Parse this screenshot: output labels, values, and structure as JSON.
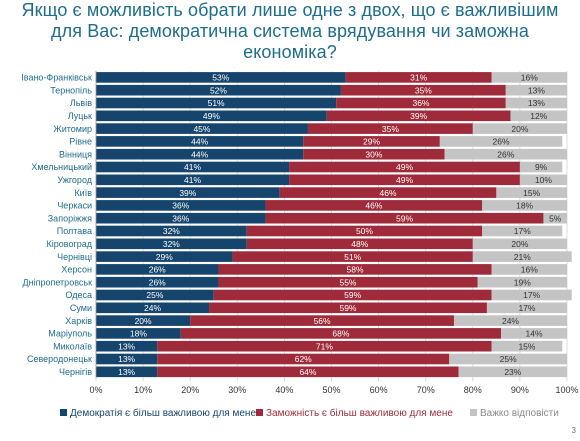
{
  "title_lines": [
    "Якщо є можливість обрати лише одне з двох, що є важливішим",
    "для Вас: демократична система врядування чи заможна",
    "економіка?"
  ],
  "page_number": "3",
  "colors": {
    "democracy": "#15456c",
    "prosperity": "#9e2a3a",
    "hard": "#c4c4c4",
    "title": "#1f6d8c"
  },
  "chart_data": {
    "type": "bar",
    "orientation": "horizontal",
    "stacked": true,
    "categories": [
      "Івано-Франківськ",
      "Тернопіль",
      "Львів",
      "Луцьк",
      "Житомир",
      "Рівне",
      "Вінниця",
      "Хмельницький",
      "Ужгород",
      "Київ",
      "Черкаси",
      "Запоріжжя",
      "Полтава",
      "Кіровоград",
      "Чернівці",
      "Херсон",
      "Дніпропетровськ",
      "Одеса",
      "Суми",
      "Харків",
      "Маріуполь",
      "Миколаїв",
      "Северодонецьк",
      "Чернігів"
    ],
    "series": [
      {
        "name": "Демократія є більш важливою для мене",
        "color": "#15456c",
        "values": [
          53,
          52,
          51,
          49,
          45,
          44,
          44,
          41,
          41,
          39,
          36,
          36,
          32,
          32,
          29,
          26,
          26,
          25,
          24,
          20,
          18,
          13,
          13,
          13
        ]
      },
      {
        "name": "Заможність є більш важливою для мене",
        "color": "#9e2a3a",
        "values": [
          31,
          35,
          36,
          39,
          35,
          29,
          30,
          49,
          49,
          46,
          46,
          59,
          50,
          48,
          51,
          58,
          55,
          59,
          59,
          56,
          68,
          71,
          62,
          64
        ]
      },
      {
        "name": "Важко відповісти",
        "color": "#c4c4c4",
        "values": [
          16,
          13,
          13,
          12,
          20,
          26,
          26,
          9,
          10,
          15,
          18,
          5,
          17,
          20,
          21,
          16,
          19,
          17,
          17,
          24,
          14,
          15,
          25,
          23
        ]
      }
    ],
    "value_labels": [
      [
        "53%",
        "31%",
        "16%"
      ],
      [
        "52%",
        "35%",
        "13%"
      ],
      [
        "51%",
        "36%",
        "13%"
      ],
      [
        "49%",
        "39%",
        "12%"
      ],
      [
        "45%",
        "35%",
        "20%"
      ],
      [
        "44%",
        "29%",
        "26%"
      ],
      [
        "44%",
        "30%",
        "26%"
      ],
      [
        "41%",
        "49%",
        "9%"
      ],
      [
        "41%",
        "49%",
        "10%"
      ],
      [
        "39%",
        "46%",
        "15%"
      ],
      [
        "36%",
        "46%",
        "18%"
      ],
      [
        "36%",
        "59%",
        "5%"
      ],
      [
        "32%",
        "50%",
        "17%"
      ],
      [
        "32%",
        "48%",
        "20%"
      ],
      [
        "29%",
        "51%",
        "21%"
      ],
      [
        "26%",
        "58%",
        "16%"
      ],
      [
        "26%",
        "55%",
        "19%"
      ],
      [
        "25%",
        "59%",
        "17%"
      ],
      [
        "24%",
        "59%",
        "17%"
      ],
      [
        "20%",
        "56%",
        "24%"
      ],
      [
        "18%",
        "68%",
        "14%"
      ],
      [
        "13%",
        "71%",
        "15%"
      ],
      [
        "13%",
        "62%",
        "25%"
      ],
      [
        "13%",
        "64%",
        "23%"
      ]
    ],
    "xlim": [
      0,
      100
    ],
    "xticks": [
      "0%",
      "10%",
      "20%",
      "30%",
      "40%",
      "50%",
      "60%",
      "70%",
      "80%",
      "90%",
      "100%"
    ],
    "grid": true,
    "legend_position": "bottom"
  }
}
